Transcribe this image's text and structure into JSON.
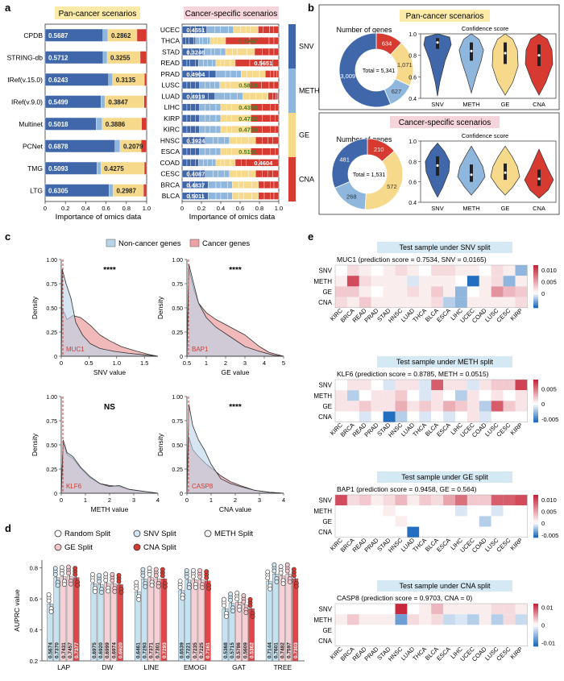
{
  "colors": {
    "snv": "#3f67aa",
    "meth": "#8fb6dc",
    "ge": "#f6d98b",
    "cna": "#d63a30",
    "pan_bg": "#fbeaa8",
    "spec_bg": "#f6d4dc",
    "test_bg": "#d5e9f4",
    "noncancer": "#b9d4e7",
    "cancer": "#eda2a4"
  },
  "panel_a": {
    "label": "a",
    "pan_title": "Pan-cancer scenarios",
    "spec_title": "Cancer-specific scenarios",
    "xlabel": "Importance of omics data",
    "ticks": [
      "0",
      "0.2",
      "0.4",
      "0.6",
      "0.8",
      "1.0"
    ],
    "legend": [
      "SNV",
      "METH",
      "GE",
      "CNA"
    ],
    "pan_rows": [
      {
        "name": "CPDB",
        "snv": 0.5687,
        "meth": 0.05,
        "ge": 0.2862,
        "snv_label": "0.5687",
        "ge_label": "0.2862",
        "ge_label_color": "#222"
      },
      {
        "name": "STRING-db",
        "snv": 0.5712,
        "meth": 0.04,
        "ge": 0.3255,
        "snv_label": "0.5712",
        "ge_label": "0.3255",
        "ge_label_color": "#222"
      },
      {
        "name": "IRef(v.15.0)",
        "snv": 0.6243,
        "meth": 0.04,
        "ge": 0.3135,
        "snv_label": "0.6243",
        "ge_label": "0.3135",
        "ge_label_color": "#222"
      },
      {
        "name": "IRef(v.9.0)",
        "snv": 0.5499,
        "meth": 0.04,
        "ge": 0.3847,
        "snv_label": "0.5499",
        "ge_label": "0.3847",
        "ge_label_color": "#222"
      },
      {
        "name": "Multinet",
        "snv": 0.5018,
        "meth": 0.06,
        "ge": 0.3886,
        "snv_label": "0.5018",
        "ge_label": "0.3886",
        "ge_label_color": "#222"
      },
      {
        "name": "PCNet",
        "snv": 0.6878,
        "meth": 0.05,
        "ge": 0.2079,
        "snv_label": "0.6878",
        "ge_label": "0.2079",
        "ge_label_color": "#222"
      },
      {
        "name": "TMG",
        "snv": 0.5093,
        "meth": 0.04,
        "ge": 0.4275,
        "snv_label": "0.5093",
        "ge_label": "0.4275",
        "ge_label_color": "#222"
      },
      {
        "name": "LTG",
        "snv": 0.6305,
        "meth": 0.04,
        "ge": 0.2987,
        "snv_label": "0.6305",
        "ge_label": "0.2987",
        "ge_label_color": "#222"
      }
    ],
    "spec_rows": [
      {
        "name": "UCEC",
        "segs": [
          0.08,
          0.05,
          0.07,
          0.04,
          0.08,
          0.05,
          0.08,
          0.05,
          0.07,
          0.05,
          0.04,
          0.08,
          0.05,
          0.06,
          0.04,
          0.05
        ],
        "label": "0.4551",
        "label_pos": 0.02,
        "label_color": "#fff"
      },
      {
        "name": "THCA",
        "segs": [
          0.04,
          0.03,
          0.05,
          0.02,
          0.04,
          0.03,
          0.05,
          0.03,
          0.04,
          0.03,
          0.05,
          0.04,
          0.25,
          0.2,
          0.05,
          0.05
        ],
        "label": "0.6997",
        "label_pos": 0.56,
        "label_color": "#2e8b2e"
      },
      {
        "name": "STAD",
        "segs": [
          0.06,
          0.04,
          0.08,
          0.05,
          0.07,
          0.04,
          0.06,
          0.05,
          0.07,
          0.05,
          0.1,
          0.08,
          0.08,
          0.07,
          0.05,
          0.05
        ],
        "label": "0.3246",
        "label_pos": 0.02,
        "label_color": "#fff"
      },
      {
        "name": "READ",
        "segs": [
          0.05,
          0.03,
          0.06,
          0.03,
          0.05,
          0.04,
          0.05,
          0.04,
          0.05,
          0.04,
          0.06,
          0.05,
          0.15,
          0.12,
          0.12,
          0.06
        ],
        "label": "0.5651",
        "label_pos": 0.72,
        "label_color": "#fff"
      },
      {
        "name": "PRAD",
        "segs": [
          0.1,
          0.08,
          0.1,
          0.07,
          0.1,
          0.05,
          0.06,
          0.05,
          0.06,
          0.06,
          0.07,
          0.06,
          0.05,
          0.04,
          0.03,
          0.02
        ],
        "label": "0.4904",
        "label_pos": 0.02,
        "label_color": "#fff"
      },
      {
        "name": "LUSC",
        "segs": [
          0.05,
          0.04,
          0.05,
          0.04,
          0.06,
          0.05,
          0.05,
          0.05,
          0.06,
          0.05,
          0.1,
          0.1,
          0.12,
          0.08,
          0.05,
          0.05
        ],
        "label": "0.5818",
        "label_pos": 0.56,
        "label_color": "#2e8b2e"
      },
      {
        "name": "LUAD",
        "segs": [
          0.1,
          0.08,
          0.09,
          0.07,
          0.1,
          0.06,
          0.07,
          0.06,
          0.07,
          0.06,
          0.07,
          0.06,
          0.05,
          0.03,
          0.02,
          0.01
        ],
        "label": "0.4919",
        "label_pos": 0.02,
        "label_color": "#fff"
      },
      {
        "name": "LIHC",
        "segs": [
          0.05,
          0.04,
          0.05,
          0.04,
          0.06,
          0.05,
          0.06,
          0.05,
          0.06,
          0.05,
          0.1,
          0.1,
          0.12,
          0.08,
          0.05,
          0.04
        ],
        "label": "0.4358",
        "label_pos": 0.56,
        "label_color": "#2e8b2e"
      },
      {
        "name": "KIRP",
        "segs": [
          0.05,
          0.04,
          0.05,
          0.04,
          0.06,
          0.05,
          0.06,
          0.05,
          0.06,
          0.05,
          0.1,
          0.1,
          0.12,
          0.08,
          0.05,
          0.04
        ],
        "label": "0.4782",
        "label_pos": 0.56,
        "label_color": "#2e8b2e"
      },
      {
        "name": "KIRC",
        "segs": [
          0.05,
          0.04,
          0.05,
          0.04,
          0.06,
          0.05,
          0.06,
          0.05,
          0.06,
          0.05,
          0.1,
          0.1,
          0.12,
          0.08,
          0.05,
          0.04
        ],
        "label": "0.4718",
        "label_pos": 0.56,
        "label_color": "#2e8b2e"
      },
      {
        "name": "HNSC",
        "segs": [
          0.07,
          0.05,
          0.07,
          0.05,
          0.08,
          0.05,
          0.07,
          0.05,
          0.07,
          0.05,
          0.08,
          0.07,
          0.07,
          0.06,
          0.05,
          0.06
        ],
        "label": "0.3924",
        "label_pos": 0.02,
        "label_color": "#fff"
      },
      {
        "name": "ESCA",
        "segs": [
          0.05,
          0.04,
          0.05,
          0.04,
          0.06,
          0.05,
          0.06,
          0.05,
          0.06,
          0.05,
          0.1,
          0.1,
          0.12,
          0.08,
          0.05,
          0.04
        ],
        "label": "0.5191",
        "label_pos": 0.56,
        "label_color": "#2e8b2e"
      },
      {
        "name": "COAD",
        "segs": [
          0.05,
          0.04,
          0.05,
          0.03,
          0.05,
          0.04,
          0.05,
          0.04,
          0.05,
          0.04,
          0.06,
          0.05,
          0.06,
          0.05,
          0.14,
          0.2
        ],
        "label": "0.4604",
        "label_pos": 0.72,
        "label_color": "#fff"
      },
      {
        "name": "CESC",
        "segs": [
          0.07,
          0.05,
          0.07,
          0.05,
          0.08,
          0.05,
          0.07,
          0.05,
          0.07,
          0.05,
          0.08,
          0.07,
          0.07,
          0.06,
          0.05,
          0.06
        ],
        "label": "0.4087",
        "label_pos": 0.02,
        "label_color": "#fff"
      },
      {
        "name": "BRCA",
        "segs": [
          0.08,
          0.05,
          0.08,
          0.06,
          0.08,
          0.05,
          0.07,
          0.05,
          0.07,
          0.05,
          0.08,
          0.07,
          0.06,
          0.06,
          0.04,
          0.05
        ],
        "label": "0.4837",
        "label_pos": 0.02,
        "label_color": "#fff"
      },
      {
        "name": "BLCA",
        "segs": [
          0.08,
          0.05,
          0.08,
          0.06,
          0.08,
          0.05,
          0.07,
          0.05,
          0.07,
          0.05,
          0.08,
          0.07,
          0.06,
          0.06,
          0.04,
          0.05
        ],
        "label": "0.5011",
        "label_pos": 0.02,
        "label_color": "#fff"
      }
    ]
  },
  "panel_b": {
    "label": "b",
    "pan_title": "Pan-cancer scenarios",
    "spec_title": "Cancer-specific scenarios",
    "donut_title": "Number of genes",
    "violin_title": "Confidence score",
    "categories": [
      "SNV",
      "METH",
      "GE",
      "CNA"
    ],
    "pan_counts": [
      3009,
      627,
      1071,
      634
    ],
    "pan_count_labels": [
      "3,009",
      "627",
      "1,071",
      "634"
    ],
    "pan_total": "Total = 5,341",
    "spec_counts": [
      481,
      268,
      572,
      210
    ],
    "spec_count_labels": [
      "481",
      "268",
      "572",
      "210"
    ],
    "spec_total": "Total = 1,531",
    "y_ticks": [
      "0.4",
      "0.6",
      "0.8",
      "1.0"
    ],
    "ylim": [
      0.4,
      1.0
    ]
  },
  "panel_c": {
    "label": "c",
    "legend": [
      "Non-cancer genes",
      "Cancer genes"
    ],
    "ylabel": "Density",
    "plots": [
      {
        "xlabel": "SNV value",
        "sig": "****",
        "gene": "MUC1",
        "xticks": [
          "0",
          "0.5",
          "1.0",
          "1.5"
        ],
        "xmax": 1.5
      },
      {
        "xlabel": "GE value",
        "sig": "****",
        "gene": "BAP1",
        "xticks": [
          "0.5",
          "1",
          "2",
          "3",
          "4",
          "5"
        ],
        "xmax": 5
      },
      {
        "xlabel": "METH value",
        "sig": "NS",
        "gene": "KLF6",
        "xticks": [
          "0",
          "1",
          "2",
          "3",
          "4"
        ],
        "xmax": 4
      },
      {
        "xlabel": "CNA value",
        "sig": "****",
        "gene": "CASP8",
        "xticks": [
          "0",
          "1",
          "2",
          "3",
          "4"
        ],
        "xmax": 4
      }
    ],
    "yticks": [
      "0",
      "0.25",
      "0.50",
      "0.75",
      "1.00"
    ]
  },
  "panel_d": {
    "label": "d",
    "legend": [
      "Random Split",
      "SNV Split",
      "METH Split",
      "GE Split",
      "CNA Split"
    ],
    "ylabel": "AUPRC value",
    "yticks": [
      "0.2",
      "0.4",
      "0.6",
      "0.8"
    ],
    "ylim": [
      0.2,
      0.85
    ],
    "chart_data": {
      "type": "bar",
      "categories": [
        "LAP",
        "DW",
        "LINE",
        "EMOGI",
        "GAT",
        "TREE"
      ],
      "series": [
        {
          "name": "Random Split",
          "values": [
            0.5674,
            0.6975,
            0.6461,
            0.6539,
            0.5368,
            0.7144
          ]
        },
        {
          "name": "SNV Split",
          "values": [
            0.737,
            0.692,
            0.7293,
            0.7221,
            0.5715,
            0.7601
          ]
        },
        {
          "name": "METH Split",
          "values": [
            0.7431,
            0.6999,
            0.7371,
            0.7235,
            0.5786,
            0.7482
          ]
        },
        {
          "name": "GE Split",
          "values": [
            0.7457,
            0.6974,
            0.7301,
            0.7225,
            0.5609,
            0.7597
          ]
        },
        {
          "name": "CNA Split",
          "values": [
            0.7377,
            0.692,
            0.7293,
            0.7161,
            0.5362,
            0.7303
          ]
        }
      ],
      "labels": [
        [
          "0.5674",
          "0.7370",
          "0.7431",
          "0.7457",
          "0.7377"
        ],
        [
          "0.6975",
          "0.6920",
          "0.6999",
          "0.6974",
          "0.6920"
        ],
        [
          "0.6461",
          "0.7293",
          "0.7371",
          "0.7301",
          "0.7293"
        ],
        [
          "0.6539",
          "0.7221",
          "0.7235",
          "0.7225",
          "0.7161"
        ],
        [
          "0.5368",
          "0.5715",
          "0.5786",
          "0.5609",
          "0.5362"
        ],
        [
          "0.7144",
          "0.7601",
          "0.7482",
          "0.7597",
          "0.7303"
        ]
      ]
    }
  },
  "panel_e": {
    "label": "e",
    "cancer_types": [
      "KIRC",
      "BRCA",
      "READ",
      "PRAD",
      "STAD",
      "HNSC",
      "LUAD",
      "THCA",
      "BLCA",
      "ESCA",
      "LIHC",
      "UCEC",
      "COAD",
      "LUSC",
      "CESC",
      "KIRP"
    ],
    "omics": [
      "SNV",
      "METH",
      "GE",
      "CNA"
    ],
    "blocks": [
      {
        "title": "Test sample under SNV split",
        "subtitle": "MUC1 (prediction score = 0.7534, SNV = 0.0165)",
        "scale": [
          "0.010",
          "0.005",
          "0"
        ],
        "vmin": -0.006,
        "vmax": 0.012,
        "grid": [
          [
            0.0,
            0.002,
            0.001,
            0.0,
            0.001,
            0.002,
            0.001,
            0.0,
            0.002,
            0.002,
            0.001,
            0.001,
            0.0,
            0.002,
            0.001,
            -0.003
          ],
          [
            0.001,
            0.01,
            0.002,
            0.001,
            0.001,
            0.001,
            -0.001,
            0.001,
            0.001,
            0.001,
            0.0,
            -0.006,
            0.001,
            0.002,
            -0.003,
            0.001
          ],
          [
            0.003,
            0.003,
            0.001,
            0.0,
            0.001,
            0.001,
            0.002,
            0.001,
            0.003,
            0.001,
            -0.003,
            0.0,
            0.001,
            0.006,
            0.004,
            0.003
          ],
          [
            0.002,
            0.001,
            0.003,
            0.001,
            0.001,
            0.001,
            0.001,
            0.001,
            0.002,
            -0.002,
            -0.003,
            0.001,
            0.001,
            0.001,
            0.001,
            0.002
          ]
        ]
      },
      {
        "title": "Test sample under METH split",
        "subtitle": "KLF6 (prediction score = 0.8785, METH = 0.0515)",
        "scale": [
          "0.005",
          "0",
          "-0.005"
        ],
        "vmin": -0.006,
        "vmax": 0.008,
        "grid": [
          [
            0.0,
            0.001,
            0.001,
            0.0,
            -0.001,
            0.001,
            0.001,
            -0.001,
            0.006,
            0.001,
            0.001,
            -0.001,
            0.001,
            0.002,
            0.002,
            0.007
          ],
          [
            0.001,
            -0.002,
            0.0,
            0.001,
            0.001,
            0.002,
            0.0,
            -0.001,
            0.001,
            0.0,
            -0.002,
            0.001,
            0.0,
            0.001,
            0.0,
            0.001
          ],
          [
            0.001,
            0.001,
            0.002,
            0.001,
            0.001,
            0.003,
            0.001,
            0.002,
            0.001,
            0.003,
            0.002,
            0.001,
            -0.002,
            0.006,
            0.002,
            0.001
          ],
          [
            0.0,
            0.0,
            -0.001,
            0.0,
            -0.007,
            -0.002,
            0.0,
            -0.001,
            0.0,
            -0.001,
            0.0,
            0.001,
            -0.001,
            0.0,
            0.0,
            0.0
          ]
        ]
      },
      {
        "title": "Test sample under GE split",
        "subtitle": "BAP1 (prediction score = 0.9458, GE = 0.564)",
        "scale": [
          "0.010",
          "0.005",
          "0",
          "-0.005"
        ],
        "vmin": -0.006,
        "vmax": 0.012,
        "grid": [
          [
            0.01,
            0.002,
            0.003,
            0.001,
            0.002,
            0.004,
            0.001,
            0.003,
            0.002,
            0.005,
            0.008,
            0.003,
            0.003,
            0.009,
            0.009,
            0.01
          ],
          [
            0.0,
            0.0,
            0.0,
            0.0,
            0.001,
            0.0,
            0.0,
            0.0,
            0.0,
            0.0,
            -0.001,
            0.0,
            0.0,
            -0.001,
            0.0,
            0.0
          ],
          [
            0.0,
            0.0,
            0.0,
            0.0,
            0.0,
            0.001,
            0.0,
            0.0,
            0.0,
            0.0,
            0.0,
            0.0,
            -0.002,
            0.0,
            0.0,
            0.0
          ],
          [
            0.0,
            0.0,
            0.0,
            0.0,
            0.0,
            0.0,
            -0.008,
            0.0,
            0.0,
            0.0,
            0.0,
            0.0,
            0.0,
            0.0,
            0.0,
            0.0
          ]
        ]
      },
      {
        "title": "Test sample under CNA split",
        "subtitle": "CASP8 (prediction score = 0.9703, CNA = 0)",
        "scale": [
          "0.01",
          "0",
          "-0.01"
        ],
        "vmin": -0.012,
        "vmax": 0.012,
        "grid": [
          [
            0.0,
            0.0,
            0.0,
            0.0,
            0.0,
            0.012,
            0.0,
            0.001,
            0.004,
            0.001,
            0.001,
            0.001,
            0.001,
            0.002,
            0.002,
            0.001
          ],
          [
            0.001,
            0.003,
            0.001,
            0.001,
            0.001,
            -0.008,
            0.002,
            0.001,
            0.002,
            -0.003,
            -0.002,
            -0.004,
            0.001,
            -0.004,
            0.002,
            -0.003
          ],
          [
            0.0,
            0.0,
            0.0,
            0.0,
            0.0,
            0.0,
            0.0,
            0.0,
            0.0,
            0.0,
            0.0,
            0.0,
            0.0,
            0.0,
            0.0,
            0.0
          ],
          [
            0.0,
            0.0,
            0.0,
            0.0,
            0.0,
            0.0,
            0.0,
            0.0,
            0.0,
            0.0,
            0.0,
            0.0,
            0.0,
            0.0,
            0.0,
            0.0
          ]
        ]
      }
    ]
  }
}
